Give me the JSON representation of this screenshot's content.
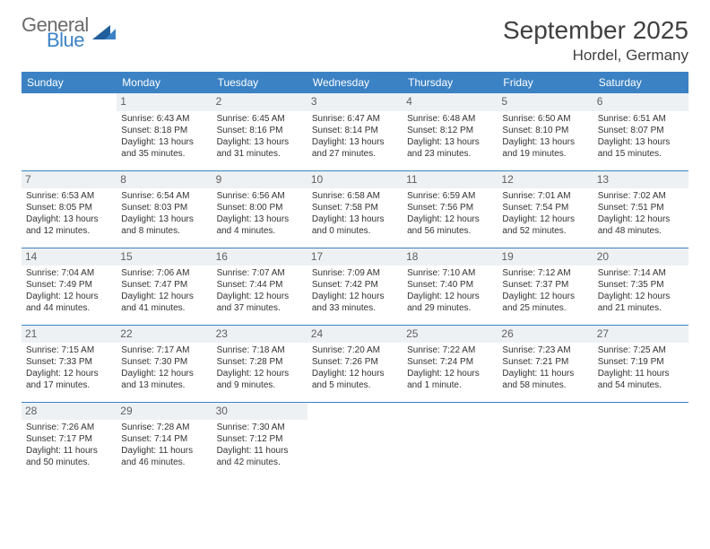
{
  "logo": {
    "text1": "General",
    "text2": "Blue",
    "color_general": "#6b6b6b",
    "color_blue": "#3b82c4"
  },
  "title": "September 2025",
  "location": "Hordel, Germany",
  "header_bg": "#3b82c4",
  "header_fg": "#ffffff",
  "daynum_bg": "#eef1f4",
  "divider_color": "#3b82c4",
  "text_color": "#333333",
  "font_size_body": 10,
  "font_size_daynum": 12,
  "font_size_header": 12,
  "font_size_title": 28,
  "font_size_location": 17,
  "day_headers": [
    "Sunday",
    "Monday",
    "Tuesday",
    "Wednesday",
    "Thursday",
    "Friday",
    "Saturday"
  ],
  "weeks": [
    [
      null,
      {
        "n": "1",
        "sr": "Sunrise: 6:43 AM",
        "ss": "Sunset: 8:18 PM",
        "d1": "Daylight: 13 hours",
        "d2": "and 35 minutes."
      },
      {
        "n": "2",
        "sr": "Sunrise: 6:45 AM",
        "ss": "Sunset: 8:16 PM",
        "d1": "Daylight: 13 hours",
        "d2": "and 31 minutes."
      },
      {
        "n": "3",
        "sr": "Sunrise: 6:47 AM",
        "ss": "Sunset: 8:14 PM",
        "d1": "Daylight: 13 hours",
        "d2": "and 27 minutes."
      },
      {
        "n": "4",
        "sr": "Sunrise: 6:48 AM",
        "ss": "Sunset: 8:12 PM",
        "d1": "Daylight: 13 hours",
        "d2": "and 23 minutes."
      },
      {
        "n": "5",
        "sr": "Sunrise: 6:50 AM",
        "ss": "Sunset: 8:10 PM",
        "d1": "Daylight: 13 hours",
        "d2": "and 19 minutes."
      },
      {
        "n": "6",
        "sr": "Sunrise: 6:51 AM",
        "ss": "Sunset: 8:07 PM",
        "d1": "Daylight: 13 hours",
        "d2": "and 15 minutes."
      }
    ],
    [
      {
        "n": "7",
        "sr": "Sunrise: 6:53 AM",
        "ss": "Sunset: 8:05 PM",
        "d1": "Daylight: 13 hours",
        "d2": "and 12 minutes."
      },
      {
        "n": "8",
        "sr": "Sunrise: 6:54 AM",
        "ss": "Sunset: 8:03 PM",
        "d1": "Daylight: 13 hours",
        "d2": "and 8 minutes."
      },
      {
        "n": "9",
        "sr": "Sunrise: 6:56 AM",
        "ss": "Sunset: 8:00 PM",
        "d1": "Daylight: 13 hours",
        "d2": "and 4 minutes."
      },
      {
        "n": "10",
        "sr": "Sunrise: 6:58 AM",
        "ss": "Sunset: 7:58 PM",
        "d1": "Daylight: 13 hours",
        "d2": "and 0 minutes."
      },
      {
        "n": "11",
        "sr": "Sunrise: 6:59 AM",
        "ss": "Sunset: 7:56 PM",
        "d1": "Daylight: 12 hours",
        "d2": "and 56 minutes."
      },
      {
        "n": "12",
        "sr": "Sunrise: 7:01 AM",
        "ss": "Sunset: 7:54 PM",
        "d1": "Daylight: 12 hours",
        "d2": "and 52 minutes."
      },
      {
        "n": "13",
        "sr": "Sunrise: 7:02 AM",
        "ss": "Sunset: 7:51 PM",
        "d1": "Daylight: 12 hours",
        "d2": "and 48 minutes."
      }
    ],
    [
      {
        "n": "14",
        "sr": "Sunrise: 7:04 AM",
        "ss": "Sunset: 7:49 PM",
        "d1": "Daylight: 12 hours",
        "d2": "and 44 minutes."
      },
      {
        "n": "15",
        "sr": "Sunrise: 7:06 AM",
        "ss": "Sunset: 7:47 PM",
        "d1": "Daylight: 12 hours",
        "d2": "and 41 minutes."
      },
      {
        "n": "16",
        "sr": "Sunrise: 7:07 AM",
        "ss": "Sunset: 7:44 PM",
        "d1": "Daylight: 12 hours",
        "d2": "and 37 minutes."
      },
      {
        "n": "17",
        "sr": "Sunrise: 7:09 AM",
        "ss": "Sunset: 7:42 PM",
        "d1": "Daylight: 12 hours",
        "d2": "and 33 minutes."
      },
      {
        "n": "18",
        "sr": "Sunrise: 7:10 AM",
        "ss": "Sunset: 7:40 PM",
        "d1": "Daylight: 12 hours",
        "d2": "and 29 minutes."
      },
      {
        "n": "19",
        "sr": "Sunrise: 7:12 AM",
        "ss": "Sunset: 7:37 PM",
        "d1": "Daylight: 12 hours",
        "d2": "and 25 minutes."
      },
      {
        "n": "20",
        "sr": "Sunrise: 7:14 AM",
        "ss": "Sunset: 7:35 PM",
        "d1": "Daylight: 12 hours",
        "d2": "and 21 minutes."
      }
    ],
    [
      {
        "n": "21",
        "sr": "Sunrise: 7:15 AM",
        "ss": "Sunset: 7:33 PM",
        "d1": "Daylight: 12 hours",
        "d2": "and 17 minutes."
      },
      {
        "n": "22",
        "sr": "Sunrise: 7:17 AM",
        "ss": "Sunset: 7:30 PM",
        "d1": "Daylight: 12 hours",
        "d2": "and 13 minutes."
      },
      {
        "n": "23",
        "sr": "Sunrise: 7:18 AM",
        "ss": "Sunset: 7:28 PM",
        "d1": "Daylight: 12 hours",
        "d2": "and 9 minutes."
      },
      {
        "n": "24",
        "sr": "Sunrise: 7:20 AM",
        "ss": "Sunset: 7:26 PM",
        "d1": "Daylight: 12 hours",
        "d2": "and 5 minutes."
      },
      {
        "n": "25",
        "sr": "Sunrise: 7:22 AM",
        "ss": "Sunset: 7:24 PM",
        "d1": "Daylight: 12 hours",
        "d2": "and 1 minute."
      },
      {
        "n": "26",
        "sr": "Sunrise: 7:23 AM",
        "ss": "Sunset: 7:21 PM",
        "d1": "Daylight: 11 hours",
        "d2": "and 58 minutes."
      },
      {
        "n": "27",
        "sr": "Sunrise: 7:25 AM",
        "ss": "Sunset: 7:19 PM",
        "d1": "Daylight: 11 hours",
        "d2": "and 54 minutes."
      }
    ],
    [
      {
        "n": "28",
        "sr": "Sunrise: 7:26 AM",
        "ss": "Sunset: 7:17 PM",
        "d1": "Daylight: 11 hours",
        "d2": "and 50 minutes."
      },
      {
        "n": "29",
        "sr": "Sunrise: 7:28 AM",
        "ss": "Sunset: 7:14 PM",
        "d1": "Daylight: 11 hours",
        "d2": "and 46 minutes."
      },
      {
        "n": "30",
        "sr": "Sunrise: 7:30 AM",
        "ss": "Sunset: 7:12 PM",
        "d1": "Daylight: 11 hours",
        "d2": "and 42 minutes."
      },
      null,
      null,
      null,
      null
    ]
  ]
}
